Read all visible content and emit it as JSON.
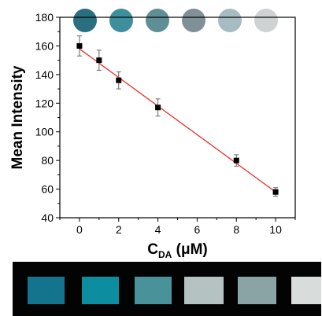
{
  "chart_data": {
    "type": "scatter",
    "title": "",
    "xlabel_main": "C",
    "xlabel_sub": "DA",
    "xlabel_unit": " (μM)",
    "ylabel": "Mean Intensity",
    "xlim": [
      -1,
      11
    ],
    "ylim": [
      40,
      180
    ],
    "xticks": [
      0,
      2,
      4,
      6,
      8,
      10
    ],
    "yticks": [
      40,
      60,
      80,
      100,
      120,
      140,
      160,
      180
    ],
    "grid": false,
    "series": [
      {
        "x": [
          0,
          1,
          2,
          4,
          8,
          10
        ],
        "y": [
          160,
          150,
          136,
          117,
          80,
          58
        ],
        "error": [
          7,
          7,
          6,
          6,
          4,
          3
        ],
        "marker_color": "#000000"
      }
    ],
    "fit_line": {
      "x": [
        0,
        10
      ],
      "y": [
        158,
        58
      ],
      "color": "#e8302b"
    },
    "circle_swatches": [
      "#2a6f80",
      "#3d8f9c",
      "#5f8f95",
      "#7f9196",
      "#a6bcc2",
      "#cfd2d3"
    ],
    "photo_swatches": [
      "#14738d",
      "#0d8da0",
      "#4a9299",
      "#b4c2c2",
      "#8aa4a6",
      "#d8dcdb"
    ],
    "photo_background": "#030303"
  }
}
